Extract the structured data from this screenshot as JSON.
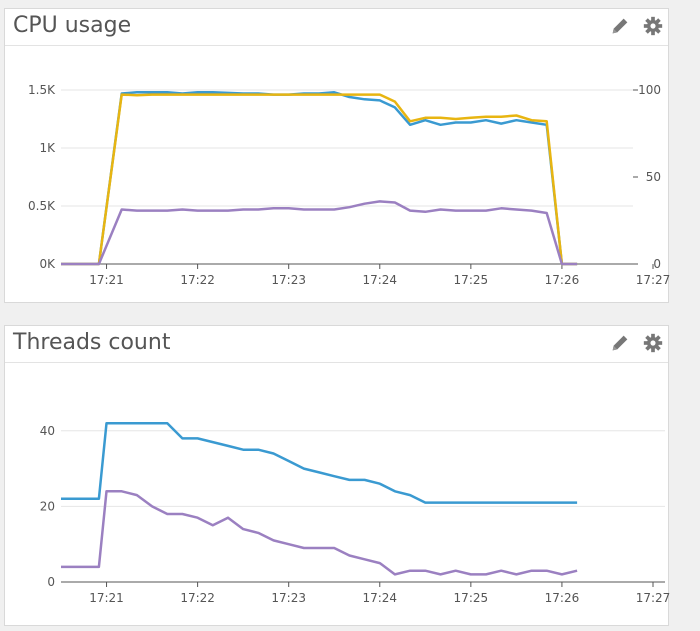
{
  "panels": [
    {
      "title": "CPU usage",
      "icons": [
        "pencil-icon",
        "gear-icon"
      ]
    },
    {
      "title": "Threads count",
      "icons": [
        "pencil-icon",
        "gear-icon"
      ]
    }
  ],
  "colors": {
    "blue": "#3a9ad1",
    "purple": "#9b80c1",
    "yellow": "#e8b511",
    "grid": "#e6e6e6",
    "axis": "#555555"
  },
  "chart_data": [
    {
      "type": "line",
      "title": "CPU usage",
      "x_tick_labels": [
        "17:21",
        "17:22",
        "17:23",
        "17:24",
        "17:25",
        "17:26",
        "17:27"
      ],
      "x_range": [
        "17:20:30",
        "17:27:00"
      ],
      "y_left_ticks": [
        "0K",
        "0.5K",
        "1K",
        "1.5K"
      ],
      "y_left_range": [
        0,
        1500
      ],
      "y_right_ticks": [
        "0",
        "50",
        "100"
      ],
      "y_right_range": [
        0,
        100
      ],
      "grid": true,
      "x": [
        "17:20:30",
        "17:20:55",
        "17:21:10",
        "17:21:20",
        "17:21:30",
        "17:21:40",
        "17:21:50",
        "17:22:00",
        "17:22:10",
        "17:22:20",
        "17:22:30",
        "17:22:40",
        "17:22:50",
        "17:23:00",
        "17:23:10",
        "17:23:20",
        "17:23:30",
        "17:23:40",
        "17:23:50",
        "17:24:00",
        "17:24:10",
        "17:24:20",
        "17:24:30",
        "17:24:40",
        "17:24:50",
        "17:25:00",
        "17:25:10",
        "17:25:20",
        "17:25:30",
        "17:25:40",
        "17:25:50",
        "17:26:00",
        "17:26:10"
      ],
      "series": [
        {
          "color": "#3a9ad1",
          "axis": "left",
          "values": [
            0,
            0,
            1470,
            1480,
            1480,
            1480,
            1470,
            1480,
            1480,
            1475,
            1470,
            1470,
            1460,
            1460,
            1470,
            1470,
            1480,
            1440,
            1420,
            1410,
            1350,
            1200,
            1240,
            1200,
            1220,
            1220,
            1240,
            1210,
            1240,
            1220,
            1200,
            0,
            0
          ]
        },
        {
          "color": "#e8b511",
          "axis": "left",
          "values": [
            0,
            0,
            1460,
            1455,
            1460,
            1460,
            1460,
            1460,
            1460,
            1460,
            1460,
            1460,
            1460,
            1460,
            1460,
            1460,
            1460,
            1460,
            1460,
            1460,
            1400,
            1230,
            1260,
            1260,
            1250,
            1260,
            1270,
            1270,
            1280,
            1240,
            1230,
            0,
            0
          ]
        },
        {
          "color": "#9b80c1",
          "axis": "left",
          "values": [
            0,
            0,
            470,
            460,
            460,
            460,
            470,
            460,
            460,
            460,
            470,
            470,
            480,
            480,
            470,
            470,
            470,
            490,
            520,
            540,
            530,
            460,
            450,
            470,
            460,
            460,
            460,
            480,
            470,
            460,
            440,
            0,
            0
          ]
        }
      ]
    },
    {
      "type": "line",
      "title": "Threads count",
      "x_tick_labels": [
        "17:21",
        "17:22",
        "17:23",
        "17:24",
        "17:25",
        "17:26",
        "17:27"
      ],
      "x_range": [
        "17:20:30",
        "17:27:00"
      ],
      "y_left_ticks": [
        "0",
        "20",
        "40"
      ],
      "y_left_range": [
        0,
        50
      ],
      "grid": true,
      "x": [
        "17:20:30",
        "17:20:55",
        "17:21:00",
        "17:21:10",
        "17:21:20",
        "17:21:30",
        "17:21:40",
        "17:21:50",
        "17:22:00",
        "17:22:10",
        "17:22:20",
        "17:22:30",
        "17:22:40",
        "17:22:50",
        "17:23:00",
        "17:23:10",
        "17:23:20",
        "17:23:30",
        "17:23:40",
        "17:23:50",
        "17:24:00",
        "17:24:10",
        "17:24:20",
        "17:24:30",
        "17:24:40",
        "17:24:50",
        "17:25:00",
        "17:25:10",
        "17:25:20",
        "17:25:30",
        "17:25:40",
        "17:25:50",
        "17:26:00",
        "17:26:10"
      ],
      "series": [
        {
          "color": "#3a9ad1",
          "values": [
            22,
            22,
            42,
            42,
            42,
            42,
            42,
            38,
            38,
            37,
            36,
            35,
            35,
            34,
            32,
            30,
            29,
            28,
            27,
            27,
            26,
            24,
            23,
            21,
            21,
            21,
            21,
            21,
            21,
            21,
            21,
            21,
            21,
            21
          ]
        },
        {
          "color": "#9b80c1",
          "values": [
            4,
            4,
            24,
            24,
            23,
            20,
            18,
            18,
            17,
            15,
            17,
            14,
            13,
            11,
            10,
            9,
            9,
            9,
            7,
            6,
            5,
            2,
            3,
            3,
            2,
            3,
            2,
            2,
            3,
            2,
            3,
            3,
            2,
            3
          ]
        }
      ]
    }
  ]
}
